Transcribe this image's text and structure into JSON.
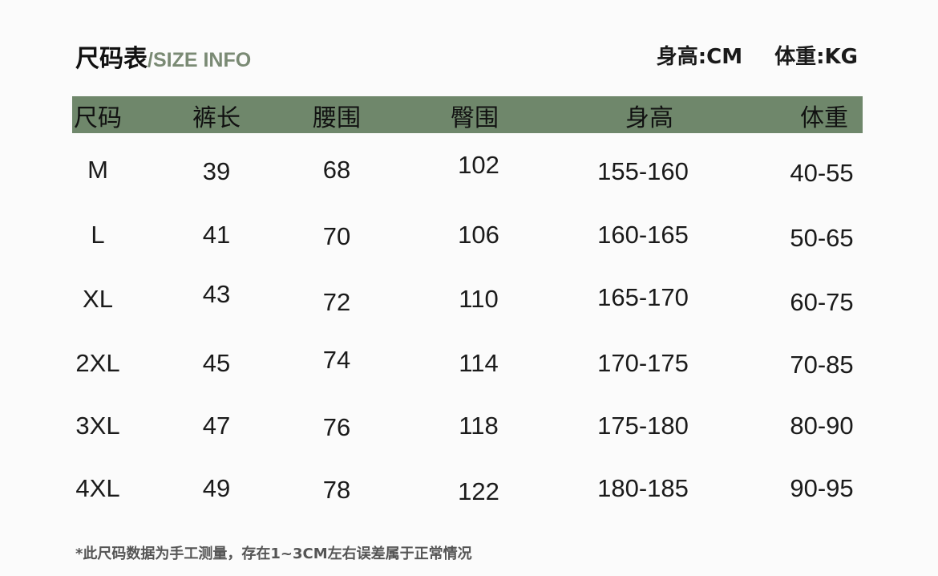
{
  "title": {
    "cn": "尺码表",
    "en": "/SIZE INFO"
  },
  "units": {
    "height": "身高:CM",
    "weight": "体重:KG"
  },
  "header_color": "#6f876b",
  "columns": [
    "尺码",
    "裤长",
    "腰围",
    "臀围",
    "身高",
    "体重"
  ],
  "rows": [
    [
      "M",
      "39",
      "68",
      "102",
      "155-160",
      "40-55"
    ],
    [
      "L",
      "41",
      "70",
      "106",
      "160-165",
      "50-65"
    ],
    [
      "XL",
      "43",
      "72",
      "110",
      "165-170",
      "60-75"
    ],
    [
      "2XL",
      "45",
      "74",
      "114",
      "170-175",
      "70-85"
    ],
    [
      "3XL",
      "47",
      "76",
      "118",
      "175-180",
      "80-90"
    ],
    [
      "4XL",
      "49",
      "78",
      "122",
      "180-185",
      "90-95"
    ]
  ],
  "note": "*此尺码数据为手工测量，存在1~3CM左右误差属于正常情况"
}
